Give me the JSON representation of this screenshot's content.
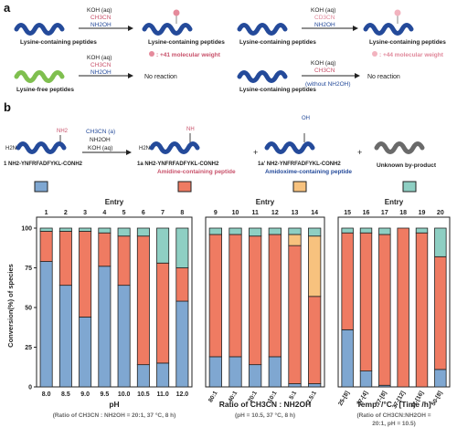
{
  "panel_labels": {
    "a": "a",
    "b": "b"
  },
  "scheme_a": {
    "reactions": [
      {
        "reagents": [
          "KOH (aq)",
          "CH3CN",
          "NH2OH"
        ],
        "reactant": "Lysine-containing peptides",
        "product": "Lysine-containing peptides",
        "note": ": +41 molecular weight",
        "color": "#c8516a"
      },
      {
        "reagents": [
          "KOH (aq)",
          "CD3CN",
          "NH2OH"
        ],
        "reactant": "",
        "product": "Lysine-containing peptides",
        "note": ": +44 molecular weight",
        "color": "#e0879a"
      },
      {
        "reagents": [
          "KOH (aq)",
          "CH3CN",
          "NH2OH"
        ],
        "reactant": "Lysine-free peptides",
        "product": "No reaction",
        "note": "",
        "color": ""
      },
      {
        "reagents": [
          "KOH (aq)",
          "CH3CN",
          "(without NH2OH)"
        ],
        "reactant": "",
        "product": "No reaction",
        "note": "",
        "color": ""
      }
    ]
  },
  "scheme_b": {
    "reagents": [
      "CH3CN (a)",
      "NH2OH",
      "KOH (aq)"
    ],
    "nh2": "NH2",
    "nh": "NH",
    "noh": "OH",
    "h2n": "H2N",
    "plus": "+",
    "species": [
      {
        "id": "1",
        "seq": "1 NH2-YNFRFADFYKL-CONH2",
        "name": "",
        "color": "#7fa7d1"
      },
      {
        "id": "1a",
        "seq": "1a NH2-YNFRFADFYKL-CONH2",
        "name": "Amidine-containing peptide",
        "color": "#ef7b62"
      },
      {
        "id": "1a'",
        "seq": "1a' NH2-YNFRFADFYKL-CONH2",
        "name": "Amidoxime-containing peptide",
        "color": "#f7c27e"
      },
      {
        "id": "by",
        "seq": "",
        "name": "Unknown by-product",
        "color": "#8ecfc3"
      }
    ]
  },
  "chart_data": [
    {
      "type": "bar",
      "subtype": "stacked-100",
      "title": "Entry",
      "entries": [
        "1",
        "2",
        "3",
        "4",
        "5",
        "6",
        "7",
        "8"
      ],
      "categories": [
        "8.0",
        "8.5",
        "9.0",
        "9.5",
        "10.0",
        "10.5",
        "11.0",
        "12.0"
      ],
      "xlabel": "pH",
      "caption": "(Ratio of CH3CN : NH2OH = 20:1, 37 °C, 8 h)",
      "ylabel": "Conversion(%) of species",
      "ylim": [
        0,
        100
      ],
      "yticks": [
        0,
        25,
        50,
        75,
        100
      ],
      "series": [
        {
          "name": "1",
          "values": [
            79,
            64,
            44,
            76,
            64,
            14,
            15,
            54
          ]
        },
        {
          "name": "1a",
          "values": [
            19,
            34,
            54,
            21,
            31,
            81,
            63,
            21
          ]
        },
        {
          "name": "1a'",
          "values": [
            0,
            0,
            0,
            0,
            0,
            0,
            0,
            0
          ]
        },
        {
          "name": "by-product",
          "values": [
            2,
            2,
            2,
            3,
            5,
            5,
            22,
            25
          ]
        }
      ]
    },
    {
      "type": "bar",
      "subtype": "stacked-100",
      "title": "Entry",
      "entries": [
        "9",
        "10",
        "11",
        "12",
        "13",
        "14"
      ],
      "categories": [
        "80:1",
        "40:1",
        "20:1",
        "10:1",
        "5:1",
        "2.5:1"
      ],
      "xlabel": "Ratio of CH3CN : NH2OH",
      "caption": "(pH = 10.5, 37 °C, 8 h)",
      "ylim": [
        0,
        100
      ],
      "series": [
        {
          "name": "1",
          "values": [
            19,
            19,
            14,
            19,
            2,
            2
          ]
        },
        {
          "name": "1a",
          "values": [
            77,
            77,
            81,
            77,
            87,
            55
          ]
        },
        {
          "name": "1a'",
          "values": [
            0,
            0,
            0,
            0,
            7,
            38
          ]
        },
        {
          "name": "by-product",
          "values": [
            4,
            4,
            5,
            4,
            4,
            5
          ]
        }
      ]
    },
    {
      "type": "bar",
      "subtype": "stacked-100",
      "title": "Entry",
      "entries": [
        "15",
        "16",
        "17",
        "18",
        "19",
        "20"
      ],
      "categories": [
        "25-[8]",
        "37-[4]",
        "37-[8]",
        "37-[12]",
        "37-[16]",
        "50-[8]"
      ],
      "xlabel": "Temp. /°C - [Time /h]",
      "caption": "(Ratio of CH3CN:NH2OH = 20:1, pH = 10.5)",
      "ylim": [
        0,
        100
      ],
      "series": [
        {
          "name": "1",
          "values": [
            36,
            10,
            1,
            0,
            0,
            11
          ]
        },
        {
          "name": "1a",
          "values": [
            61,
            87,
            95,
            100,
            97,
            71
          ]
        },
        {
          "name": "1a'",
          "values": [
            0,
            0,
            0,
            0,
            0,
            0
          ]
        },
        {
          "name": "by-product",
          "values": [
            3,
            3,
            4,
            0,
            3,
            18
          ]
        }
      ]
    }
  ]
}
